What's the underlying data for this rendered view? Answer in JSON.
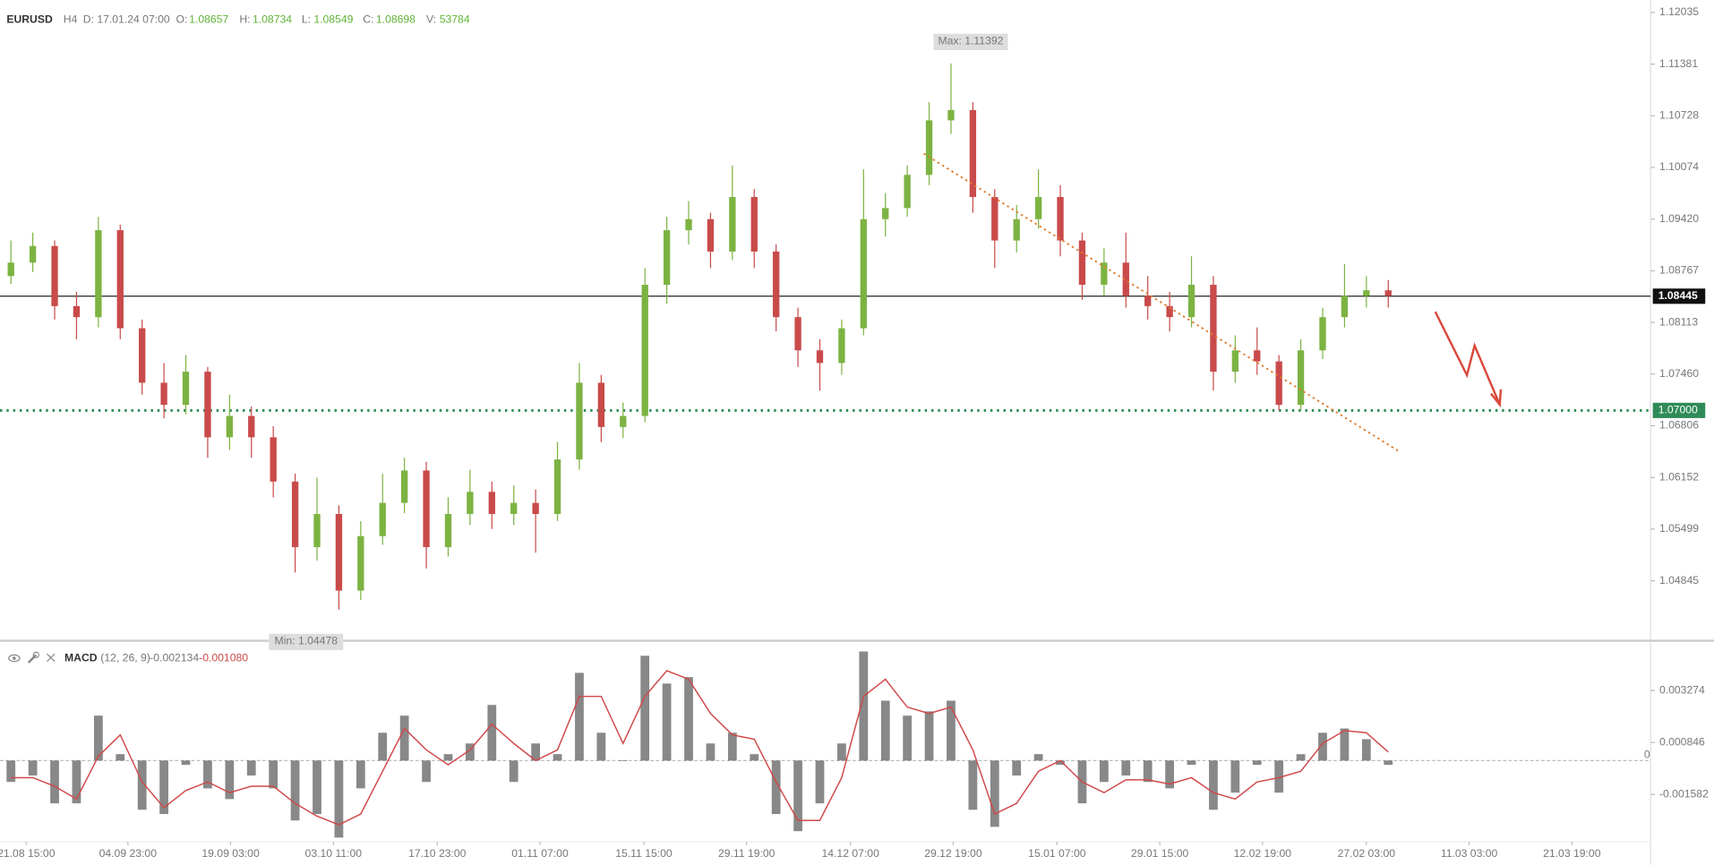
{
  "header": {
    "symbol": "EURUSD",
    "timeframe": "H4",
    "date": "D: 17.01.24 07:00",
    "fields": [
      {
        "label": "O:",
        "value": "1.08657"
      },
      {
        "label": "H:",
        "value": "1.08734"
      },
      {
        "label": "L:",
        "value": "1.08549"
      },
      {
        "label": "C:",
        "value": "1.08698"
      },
      {
        "label": "V:",
        "value": "53784"
      }
    ]
  },
  "chart_data": {
    "type": "candlestick",
    "up_color": "#7cb342",
    "down_color": "#c94a4a",
    "open": [
      1.087,
      1.0887,
      1.0908,
      1.0832,
      1.0818,
      1.0928,
      1.0804,
      1.0735,
      1.0707,
      1.0749,
      1.0666,
      1.0693,
      1.0666,
      1.061,
      1.0527,
      1.0569,
      1.0472,
      1.0541,
      1.0583,
      1.0624,
      1.0527,
      1.0569,
      1.0597,
      1.0569,
      1.0583,
      1.0569,
      1.0638,
      1.0735,
      1.0679,
      1.0693,
      1.0859,
      1.0928,
      1.0942,
      1.0901,
      1.097,
      1.0901,
      1.0818,
      1.0776,
      1.076,
      1.0804,
      1.0942,
      1.0956,
      1.0998,
      1.1067,
      1.108,
      1.097,
      1.0915,
      1.0942,
      1.097,
      1.0915,
      1.0859,
      1.0887,
      1.0845,
      1.0832,
      1.0818,
      1.0859,
      1.0749,
      1.0776,
      1.0762,
      1.0707,
      1.0776,
      1.0818,
      1.0845,
      1.0852
    ],
    "high": [
      1.0915,
      1.0925,
      1.0915,
      1.085,
      1.0945,
      1.0935,
      1.0815,
      1.076,
      1.077,
      1.0755,
      1.072,
      1.0705,
      1.068,
      1.062,
      1.0615,
      1.058,
      1.056,
      1.062,
      1.064,
      1.0635,
      1.059,
      1.0625,
      1.061,
      1.0605,
      1.06,
      1.066,
      1.076,
      1.0745,
      1.071,
      1.088,
      1.0945,
      1.0965,
      1.095,
      1.101,
      1.098,
      1.091,
      1.083,
      1.079,
      1.0815,
      1.1005,
      1.0975,
      1.101,
      1.109,
      1.1139,
      1.109,
      1.098,
      1.096,
      1.1005,
      1.0985,
      1.0925,
      1.0905,
      1.0925,
      1.087,
      1.085,
      1.0895,
      1.087,
      1.0795,
      1.0805,
      1.077,
      1.079,
      1.083,
      1.0885,
      1.087,
      1.0865
    ],
    "low": [
      1.086,
      1.0875,
      1.0815,
      1.079,
      1.0805,
      1.079,
      1.072,
      1.069,
      1.0695,
      1.064,
      1.065,
      1.064,
      1.059,
      1.0495,
      1.051,
      1.0448,
      1.046,
      1.053,
      1.057,
      1.05,
      1.0515,
      1.0555,
      1.055,
      1.0555,
      1.052,
      1.056,
      1.0625,
      1.066,
      1.0665,
      1.0685,
      1.0835,
      1.091,
      1.088,
      1.089,
      1.088,
      1.08,
      1.0755,
      1.0725,
      1.0745,
      1.0795,
      1.092,
      1.0945,
      1.0985,
      1.105,
      1.095,
      1.088,
      1.09,
      1.093,
      1.0895,
      1.084,
      1.0845,
      1.083,
      1.0815,
      1.08,
      1.0805,
      1.0725,
      1.0735,
      1.0745,
      1.07,
      1.07,
      1.0765,
      1.0805,
      1.083,
      1.083
    ],
    "close": [
      1.0887,
      1.0908,
      1.0832,
      1.0818,
      1.0928,
      1.0804,
      1.0735,
      1.0707,
      1.0749,
      1.0666,
      1.0693,
      1.0666,
      1.061,
      1.0527,
      1.0569,
      1.0472,
      1.0541,
      1.0583,
      1.0624,
      1.0527,
      1.0569,
      1.0597,
      1.0569,
      1.0583,
      1.0569,
      1.0638,
      1.0735,
      1.0679,
      1.0693,
      1.0859,
      1.0928,
      1.0942,
      1.0901,
      1.097,
      1.0901,
      1.0818,
      1.0776,
      1.076,
      1.0804,
      1.0942,
      1.0956,
      1.0998,
      1.1067,
      1.108,
      1.097,
      1.0915,
      1.0942,
      1.097,
      1.0915,
      1.0859,
      1.0887,
      1.0845,
      1.0832,
      1.0818,
      1.0859,
      1.0749,
      1.0776,
      1.0762,
      1.0707,
      1.0776,
      1.0818,
      1.0845,
      1.0852,
      1.0845
    ],
    "xlim": [
      -0.5,
      75
    ],
    "xticks": [
      {
        "value": 0.7,
        "label": "21.08 15:00"
      },
      {
        "value": 5.35,
        "label": "04.09 23:00"
      },
      {
        "value": 10.05,
        "label": "19.09 03:00"
      },
      {
        "value": 14.75,
        "label": "03.10 11:00"
      },
      {
        "value": 19.5,
        "label": "17.10 23:00"
      },
      {
        "value": 24.2,
        "label": "01.11 07:00"
      },
      {
        "value": 28.95,
        "label": "15.11 15:00"
      },
      {
        "value": 33.65,
        "label": "29.11 19:00"
      },
      {
        "value": 38.4,
        "label": "14.12 07:00"
      },
      {
        "value": 43.1,
        "label": "29.12 19:00"
      },
      {
        "value": 47.85,
        "label": "15.01 07:00"
      },
      {
        "value": 52.55,
        "label": "29.01 15:00"
      },
      {
        "value": 57.25,
        "label": "12.02 19:00"
      },
      {
        "value": 62,
        "label": "27.02 03:00"
      },
      {
        "value": 66.7,
        "label": "11.03 03:00"
      },
      {
        "value": 71.4,
        "label": "21.03 19:00"
      }
    ],
    "ylim": [
      1.041,
      1.1219
    ],
    "yticks": [
      1.12035,
      1.11381,
      1.10728,
      1.10074,
      {
        "value": 1.0942,
        "label": "1.09420"
      },
      1.08767,
      1.08113,
      {
        "value": 1.0746,
        "label": "1.07460"
      },
      1.06806,
      1.06152,
      1.05499,
      1.04845
    ],
    "current_price": 1.08445,
    "level": {
      "value": 1.07,
      "label": "1.07000",
      "color": "#2e8b57"
    },
    "annotations": [
      {
        "label": "Max: 1.11392",
        "value": 1.11392,
        "x": 43
      },
      {
        "label": "Min: 1.04478",
        "value": 1.04478,
        "x": 15
      }
    ],
    "trendline": {
      "x": [
        41.75,
        63.5
      ],
      "y": [
        1.1025,
        1.0648
      ],
      "color": "#e07b2a"
    },
    "macd": {
      "name": "MACD",
      "params": "(12, 26, 9)",
      "macd_value": "-0.002134",
      "signal_value": "-0.001080",
      "hist_color": "#555555",
      "signal_color": "#d04848",
      "ylim": [
        -0.0038,
        0.0055
      ],
      "yticks": [
        0.003274,
        0.000846,
        -0.001582
      ],
      "zero": 0,
      "histogram": [
        -0.001,
        -0.0007,
        -0.002,
        -0.002,
        0.0021,
        0.0003,
        -0.0023,
        -0.0025,
        -0.0002,
        -0.0013,
        -0.0018,
        -0.0007,
        -0.0013,
        -0.0028,
        -0.0025,
        -0.0036,
        -0.0013,
        0.0013,
        0.0021,
        -0.001,
        0.0003,
        0.0008,
        0.0026,
        -0.001,
        0.0008,
        0.0003,
        0.0041,
        0.0013,
        0.0,
        0.0049,
        0.0036,
        0.0039,
        0.0008,
        0.0013,
        0.0003,
        -0.0025,
        -0.0033,
        -0.002,
        0.0008,
        0.0051,
        0.0028,
        0.0021,
        0.0023,
        0.0028,
        -0.0023,
        -0.0031,
        -0.0007,
        0.0003,
        -0.0002,
        -0.002,
        -0.001,
        -0.0007,
        -0.001,
        -0.0013,
        -0.0002,
        -0.0023,
        -0.0015,
        -0.0002,
        -0.0015,
        0.0003,
        0.0013,
        0.0015,
        0.001,
        -0.0002
      ],
      "signal": [
        -0.0008,
        -0.0008,
        -0.0012,
        -0.0018,
        0.0002,
        0.0012,
        -0.001,
        -0.0022,
        -0.0014,
        -0.001,
        -0.0015,
        -0.0012,
        -0.0012,
        -0.002,
        -0.0026,
        -0.003,
        -0.0025,
        -0.0005,
        0.0015,
        0.0005,
        -0.0002,
        0.0005,
        0.0017,
        0.0008,
        0.0,
        0.0005,
        0.003,
        0.003,
        0.0008,
        0.003,
        0.0042,
        0.0038,
        0.0022,
        0.0012,
        0.001,
        -0.001,
        -0.0028,
        -0.0028,
        -0.0008,
        0.003,
        0.0038,
        0.0025,
        0.0022,
        0.0025,
        0.0005,
        -0.0025,
        -0.002,
        -0.0005,
        0.0,
        -0.001,
        -0.0015,
        -0.0009,
        -0.0009,
        -0.0011,
        -0.0008,
        -0.0015,
        -0.0018,
        -0.001,
        -0.0008,
        -0.0005,
        0.0008,
        0.0014,
        0.0013,
        0.0004
      ]
    }
  }
}
